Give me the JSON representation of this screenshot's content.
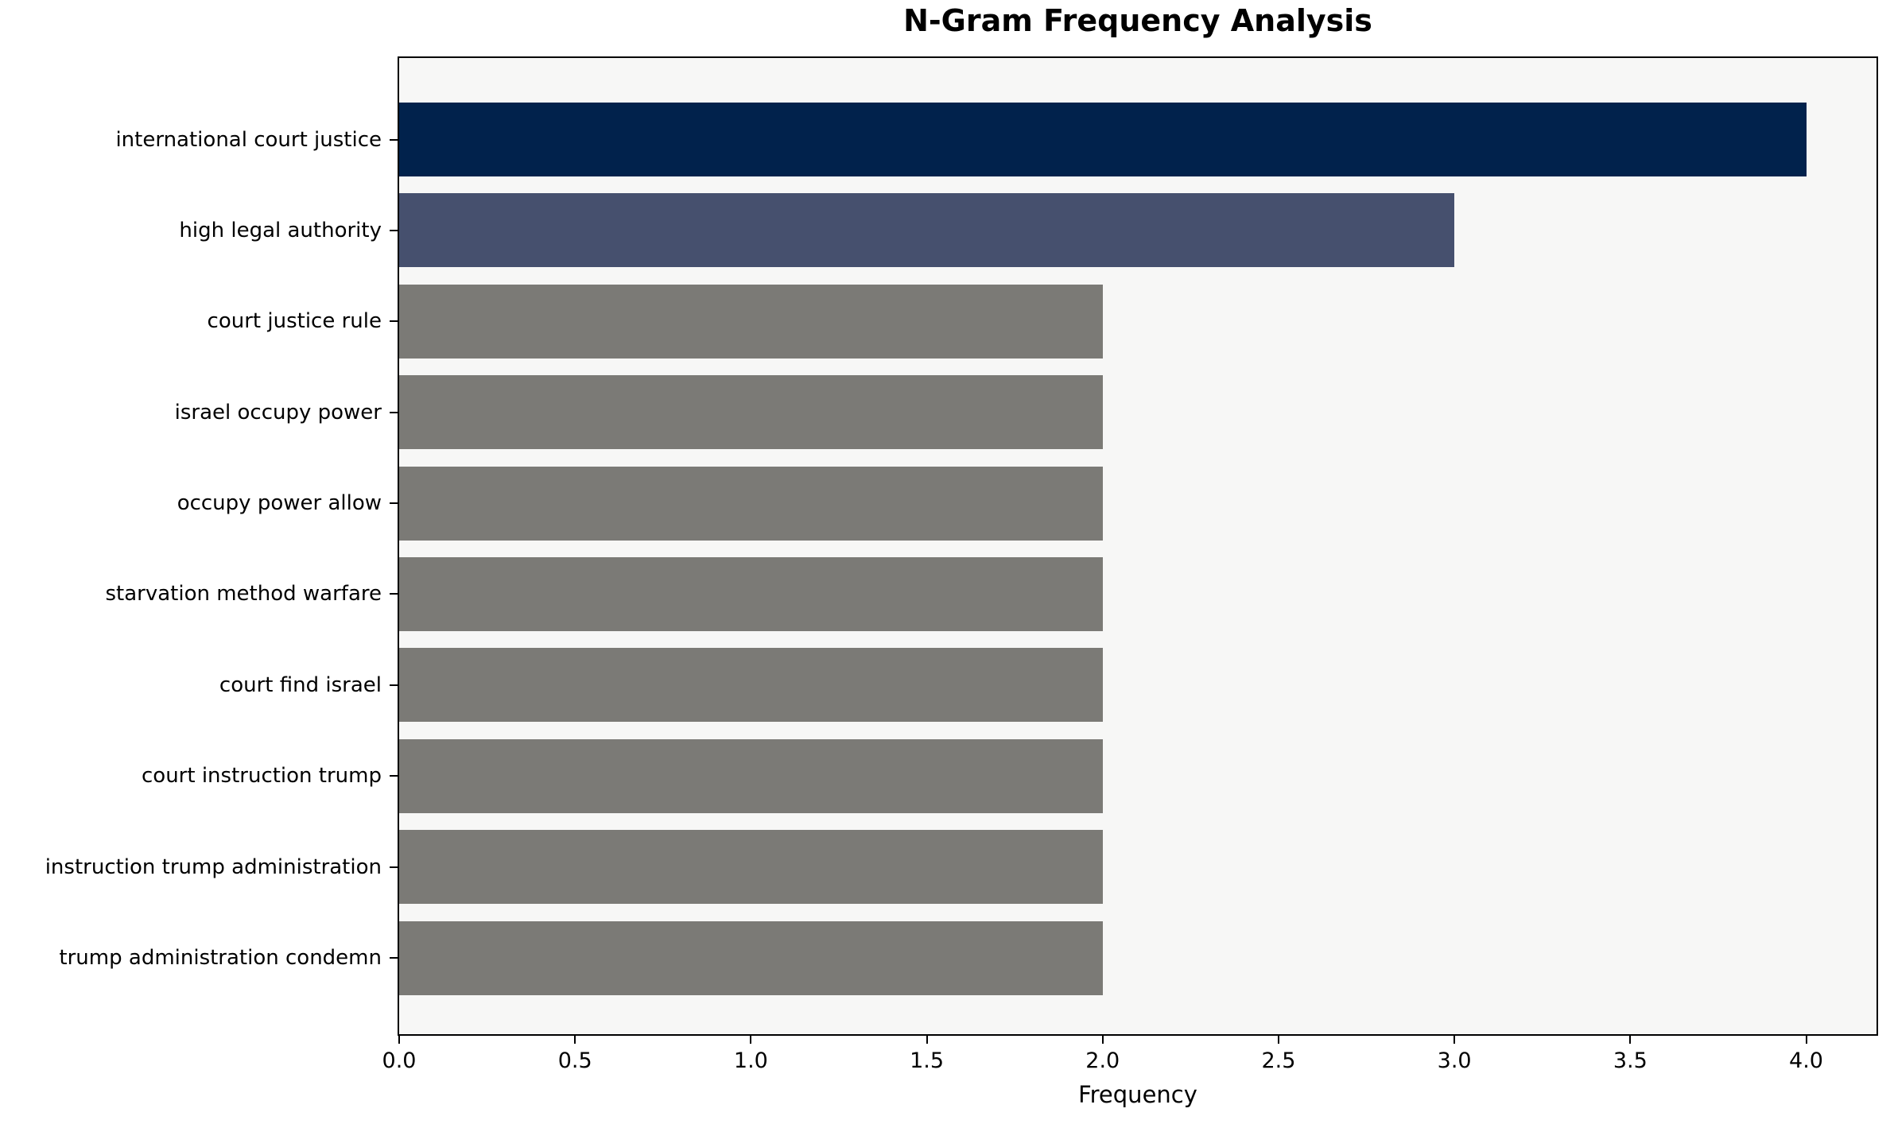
{
  "chart_data": {
    "type": "bar",
    "orientation": "horizontal",
    "title": "N-Gram Frequency Analysis",
    "xlabel": "Frequency",
    "ylabel": "",
    "categories": [
      "international court justice",
      "high legal authority",
      "court justice rule",
      "israel occupy power",
      "occupy power allow",
      "starvation method warfare",
      "court find israel",
      "court instruction trump",
      "instruction trump administration",
      "trump administration condemn"
    ],
    "values": [
      4,
      3,
      2,
      2,
      2,
      2,
      2,
      2,
      2,
      2
    ],
    "xlim": [
      0,
      4.2
    ],
    "xticks": [
      0.0,
      0.5,
      1.0,
      1.5,
      2.0,
      2.5,
      3.0,
      3.5,
      4.0
    ],
    "xtick_labels": [
      "0.0",
      "0.5",
      "1.0",
      "1.5",
      "2.0",
      "2.5",
      "3.0",
      "3.5",
      "4.0"
    ],
    "grid": false,
    "legend": null,
    "bar_colors": [
      "#01224c",
      "#46506e",
      "#7b7a76",
      "#7b7a76",
      "#7b7a76",
      "#7b7a76",
      "#7b7a76",
      "#7b7a76",
      "#7b7a76",
      "#7b7a76"
    ],
    "plot_background": "#f7f7f6",
    "spine_color": "#000000",
    "text_color": "#000000"
  }
}
